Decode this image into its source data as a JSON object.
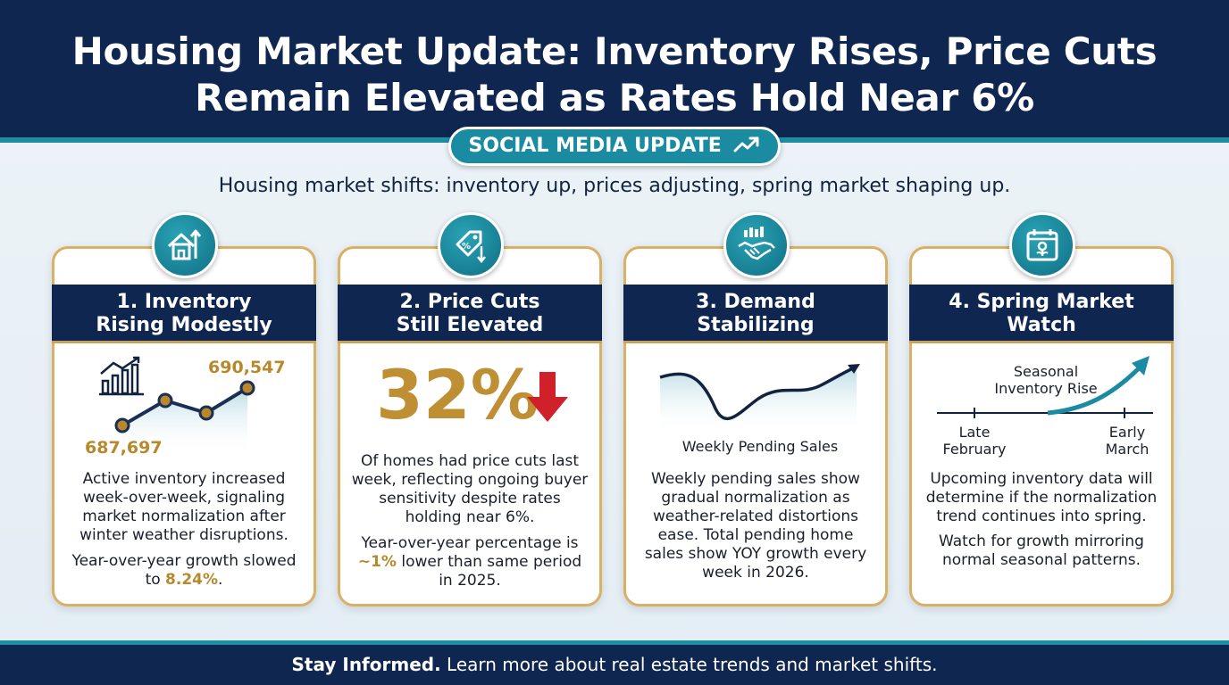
{
  "header": {
    "title_line1": "Housing Market Update: Inventory Rises, Price Cuts",
    "title_line2": "Remain Elevated as Rates Hold Near 6%",
    "badge": "SOCIAL MEDIA UPDATE",
    "badge_icon": "trend-up-icon"
  },
  "subtitle": "Housing market shifts: inventory up, prices adjusting, spring market shaping up.",
  "cards": [
    {
      "icon": "house-arrow-icon",
      "title_line1": "1. Inventory",
      "title_line2": "Rising Modestly",
      "value_high": "690,547",
      "value_low": "687,697",
      "text1": "Active inventory increased week-over-week, signaling market normalization after winter weather disruptions.",
      "text2_prefix": "Year-over-year growth slowed to ",
      "text2_value": "8.24%",
      "text2_suffix": "."
    },
    {
      "icon": "price-tag-icon",
      "title_line1": "2. Price Cuts",
      "title_line2": "Still Elevated",
      "big_value": "32%",
      "text1": "Of homes had price cuts last week, reflecting ongoing buyer sensitivity despite rates holding near 6%.",
      "text2_prefix": "Year-over-year percentage is ",
      "text2_value": "~1%",
      "text2_suffix": " lower than same period in 2025."
    },
    {
      "icon": "handshake-icon",
      "title_line1": "3. Demand",
      "title_line2": "Stabilizing",
      "chart_label": "Weekly Pending Sales",
      "text1": "Weekly pending sales show gradual normalization as weather-related distortions ease. Total pending home sales show YOY growth every week in 2026."
    },
    {
      "icon": "calendar-flower-icon",
      "title_line1": "4. Spring Market",
      "title_line2": "Watch",
      "chart_label": "Seasonal Inventory Rise",
      "label_left": "Late February",
      "label_right": "Early March",
      "text1": "Upcoming inventory data will determine if the normalization trend continues into spring.",
      "text2": "Watch for growth mirroring normal seasonal patterns."
    }
  ],
  "footer": {
    "bold": "Stay Informed.",
    "text": " Learn more about real estate trends and market shifts."
  },
  "colors": {
    "navy": "#0f2650",
    "teal": "#1a8ba0",
    "gold": "#b8892c",
    "red": "#d0202a"
  }
}
